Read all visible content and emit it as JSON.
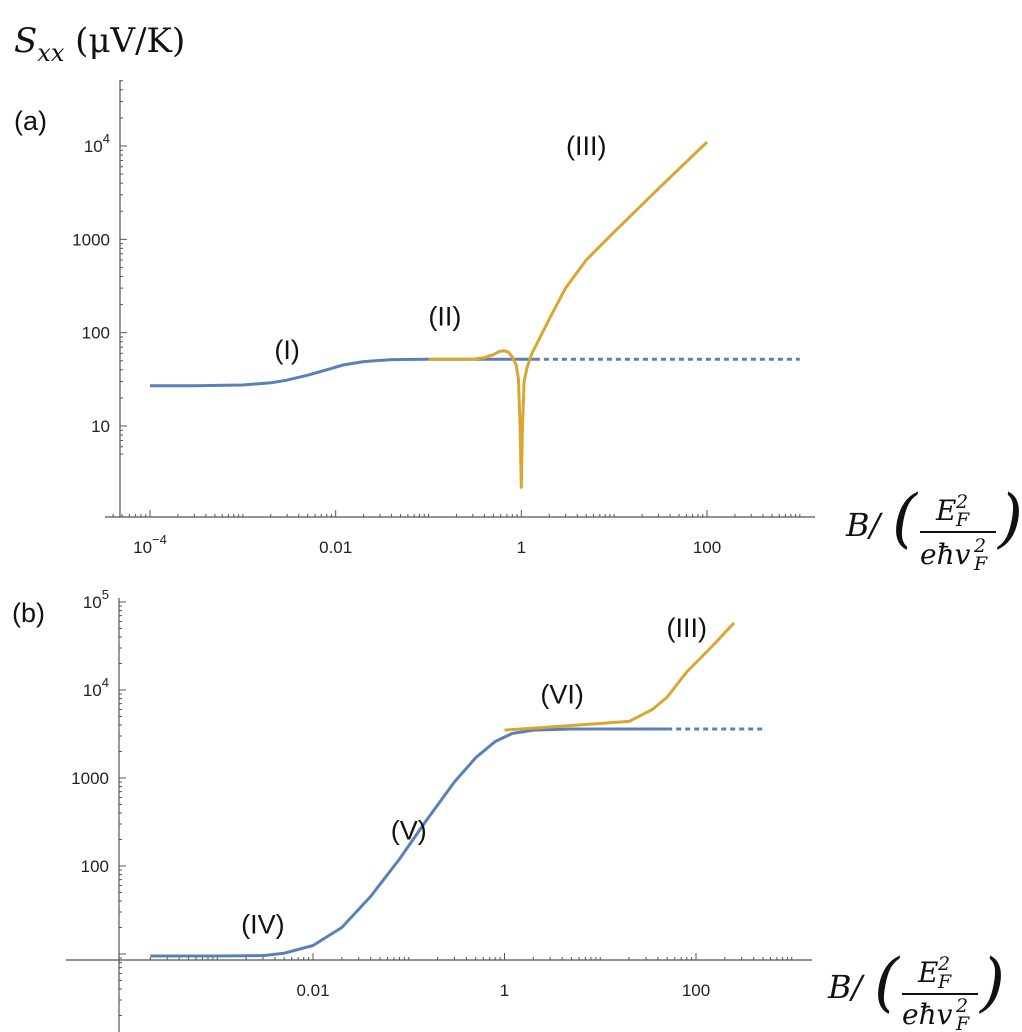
{
  "ylabel": {
    "symbol": "S",
    "sub": "xx",
    "unit": " (μV/K)"
  },
  "xlabel": {
    "prefix": "B/",
    "num_base": "E",
    "num_sup": "2",
    "num_sub": "F",
    "den_base": "eħv",
    "den_sup": "2",
    "den_sub": "F"
  },
  "colors": {
    "blue": "#5b80b8",
    "gold": "#dba532",
    "axis": "#555555"
  },
  "chart_data": [
    {
      "type": "line",
      "panel_label": "(a)",
      "x_scale": "log",
      "y_scale": "log",
      "xlim": [
        3e-05,
        1000
      ],
      "ylim": [
        5,
        70000
      ],
      "x_ticks": [
        {
          "v": 0.0001,
          "base": "10",
          "exp": "−4"
        },
        {
          "v": 0.01,
          "label": "0.01"
        },
        {
          "v": 1,
          "label": "1"
        },
        {
          "v": 100,
          "label": "100"
        }
      ],
      "y_ticks": [
        {
          "v": 10,
          "label": "10"
        },
        {
          "v": 100,
          "label": "100"
        },
        {
          "v": 1000,
          "label": "1000"
        },
        {
          "v": 10000,
          "base": "10",
          "exp": "4"
        }
      ],
      "series": [
        {
          "color": "blue",
          "style": "solid",
          "points": [
            [
              0.0001,
              27
            ],
            [
              0.0003,
              27
            ],
            [
              0.001,
              27.5
            ],
            [
              0.002,
              29
            ],
            [
              0.003,
              31
            ],
            [
              0.005,
              35
            ],
            [
              0.008,
              40
            ],
            [
              0.012,
              45
            ],
            [
              0.02,
              49
            ],
            [
              0.04,
              51.5
            ],
            [
              0.1,
              52
            ],
            [
              0.5,
              52
            ],
            [
              1,
              52
            ],
            [
              1.4,
              52
            ]
          ]
        },
        {
          "color": "blue",
          "style": "dashed",
          "points": [
            [
              1.4,
              52
            ],
            [
              1000,
              52
            ]
          ]
        },
        {
          "color": "gold",
          "style": "solid",
          "points": [
            [
              0.1,
              52
            ],
            [
              0.3,
              52
            ],
            [
              0.4,
              54
            ],
            [
              0.5,
              58
            ],
            [
              0.58,
              63
            ],
            [
              0.65,
              64
            ],
            [
              0.72,
              62
            ],
            [
              0.8,
              55
            ],
            [
              0.88,
              45
            ],
            [
              0.93,
              32
            ],
            [
              0.97,
              10
            ],
            [
              1.0,
              2.2
            ],
            [
              1.03,
              10
            ],
            [
              1.07,
              30
            ],
            [
              1.15,
              42
            ],
            [
              1.3,
              60
            ],
            [
              1.6,
              90
            ],
            [
              2,
              140
            ],
            [
              3,
              300
            ],
            [
              5,
              600
            ],
            [
              10,
              1200
            ],
            [
              30,
              3500
            ],
            [
              100,
              11000
            ]
          ]
        }
      ],
      "annotations": [
        {
          "text": "(I)",
          "x": 0.003,
          "y": 52
        },
        {
          "text": "(II)",
          "x": 0.15,
          "y": 120
        },
        {
          "text": "(III)",
          "x": 5,
          "y": 8000
        }
      ]
    },
    {
      "type": "line",
      "panel_label": "(b)",
      "x_scale": "log",
      "y_scale": "log",
      "xlim": [
        0.0002,
        1000
      ],
      "ylim": [
        1.5,
        110000
      ],
      "x_ticks": [
        {
          "v": 0.01,
          "label": "0.01"
        },
        {
          "v": 1,
          "label": "1"
        },
        {
          "v": 100,
          "label": "100"
        }
      ],
      "y_ticks": [
        {
          "v": 100,
          "label": "100"
        },
        {
          "v": 1000,
          "label": "1000"
        },
        {
          "v": 10000,
          "base": "10",
          "exp": "4"
        },
        {
          "v": 100000,
          "base": "10",
          "exp": "5"
        }
      ],
      "series": [
        {
          "color": "blue",
          "style": "solid",
          "points": [
            [
              0.0002,
              9.5
            ],
            [
              0.001,
              9.5
            ],
            [
              0.003,
              9.6
            ],
            [
              0.005,
              10.2
            ],
            [
              0.01,
              12.5
            ],
            [
              0.02,
              20
            ],
            [
              0.04,
              45
            ],
            [
              0.08,
              120
            ],
            [
              0.15,
              320
            ],
            [
              0.3,
              900
            ],
            [
              0.5,
              1700
            ],
            [
              0.8,
              2600
            ],
            [
              1.2,
              3200
            ],
            [
              2,
              3500
            ],
            [
              5,
              3600
            ],
            [
              20,
              3600
            ],
            [
              50,
              3600
            ]
          ]
        },
        {
          "color": "blue",
          "style": "dashed",
          "points": [
            [
              50,
              3600
            ],
            [
              500,
              3600
            ]
          ]
        },
        {
          "color": "gold",
          "style": "solid",
          "points": [
            [
              1,
              3500
            ],
            [
              3,
              3800
            ],
            [
              8,
              4100
            ],
            [
              20,
              4400
            ],
            [
              35,
              6000
            ],
            [
              50,
              8300
            ],
            [
              80,
              16000
            ],
            [
              150,
              32000
            ],
            [
              250,
              58000
            ]
          ]
        }
      ],
      "annotations": [
        {
          "text": "(IV)",
          "x": 0.003,
          "y": 17
        },
        {
          "text": "(V)",
          "x": 0.1,
          "y": 200
        },
        {
          "text": "(VI)",
          "x": 4,
          "y": 7000
        },
        {
          "text": "(III)",
          "x": 80,
          "y": 40000
        }
      ]
    }
  ]
}
